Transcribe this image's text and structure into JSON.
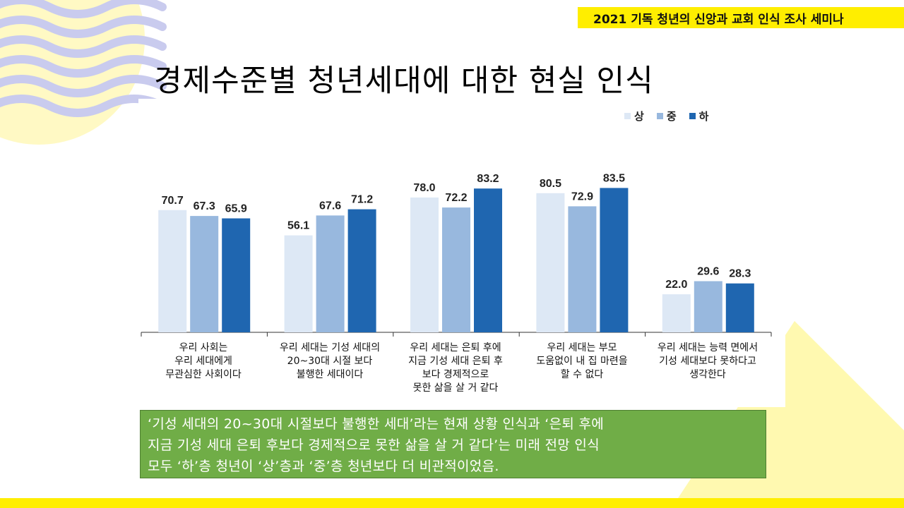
{
  "header": {
    "banner": "2021 기독 청년의 신앙과 교회 인식 조사 세미나"
  },
  "page": {
    "title": "경제수준별 청년세대에 대한 현실 인식"
  },
  "colors": {
    "accent_yellow": "#ffee00",
    "wave": "#c9cbee",
    "summary_bg": "#70ad47",
    "series": [
      "#dde8f5",
      "#98b8de",
      "#1f66b0"
    ]
  },
  "chart_data": {
    "type": "bar",
    "title": "경제수준별 청년세대에 대한 현실 인식",
    "categories": [
      "우리 사회는\n우리 세대에게\n무관심한 사회이다",
      "우리 세대는 기성 세대의\n20~30대 시절 보다\n불행한 세대이다",
      "우리 세대는 은퇴 후에\n지금 기성 세대 은퇴 후\n보다 경제적으로\n못한 삶을 살 거 같다",
      "우리 세대는 부모\n도움없이 내 집 마련을\n할 수 없다",
      "우리 세대는 능력 면에서\n기성 세대보다 못하다고\n생각한다"
    ],
    "series": [
      {
        "name": "상",
        "values": [
          70.7,
          56.1,
          78.0,
          80.5,
          22.0
        ]
      },
      {
        "name": "중",
        "values": [
          67.3,
          67.6,
          72.2,
          72.9,
          29.6
        ]
      },
      {
        "name": "하",
        "values": [
          65.9,
          71.2,
          83.2,
          83.5,
          28.3
        ]
      }
    ],
    "ylim": [
      0,
      100
    ],
    "xlabel": "",
    "ylabel": "",
    "legend_position": "top-right",
    "grid": false
  },
  "summary": {
    "lines": [
      "‘기성 세대의 20~30대 시절보다 불행한 세대’라는 현재 상황 인식과 ‘은퇴 후에",
      "지금 기성 세대 은퇴 후보다 경제적으로 못한 삶을 살 거 같다’는 미래 전망 인식",
      "모두 ‘하’층 청년이 ‘상’층과 ‘중’층 청년보다 더 비관적이었음."
    ]
  }
}
